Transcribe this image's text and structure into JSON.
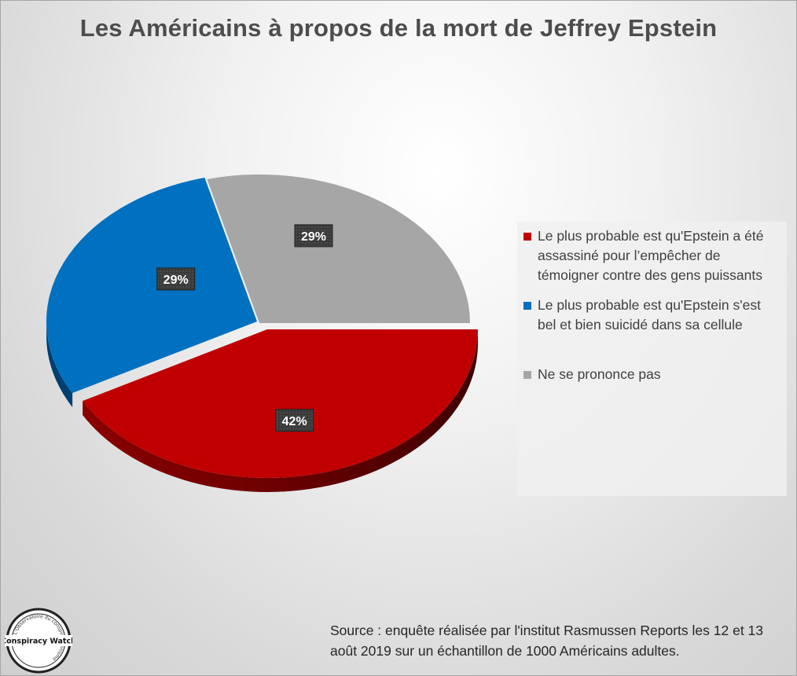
{
  "chart_data": {
    "type": "pie",
    "title": "Les Américains à propos de la mort de Jeffrey Epstein",
    "slices": [
      {
        "label": "Le plus probable est qu'Epstein a été assassiné pour l’empêcher de témoigner contre des gens puissants",
        "value": 42,
        "display": "42%",
        "color": "#c00000",
        "side_color": "#6b0000"
      },
      {
        "label": "Le plus probable est qu'Epstein s'est bel et bien suicidé dans sa cellule",
        "value": 29,
        "display": "29%",
        "color": "#0070c0",
        "side_color": "#003f70"
      },
      {
        "label": "Ne se prononce pas",
        "value": 29,
        "display": "29%",
        "color": "#a6a6a6",
        "side_color": "#595959"
      }
    ],
    "legend_position": "right"
  },
  "source": "Source : enquête réalisée par l'institut Rasmussen Reports les 12 et 13 août 2019 sur un échantillon de 1000 Américains adultes.",
  "logo": {
    "name": "Conspiracy Watch",
    "ring_text": "L'Observatoire du conspirationnisme"
  }
}
